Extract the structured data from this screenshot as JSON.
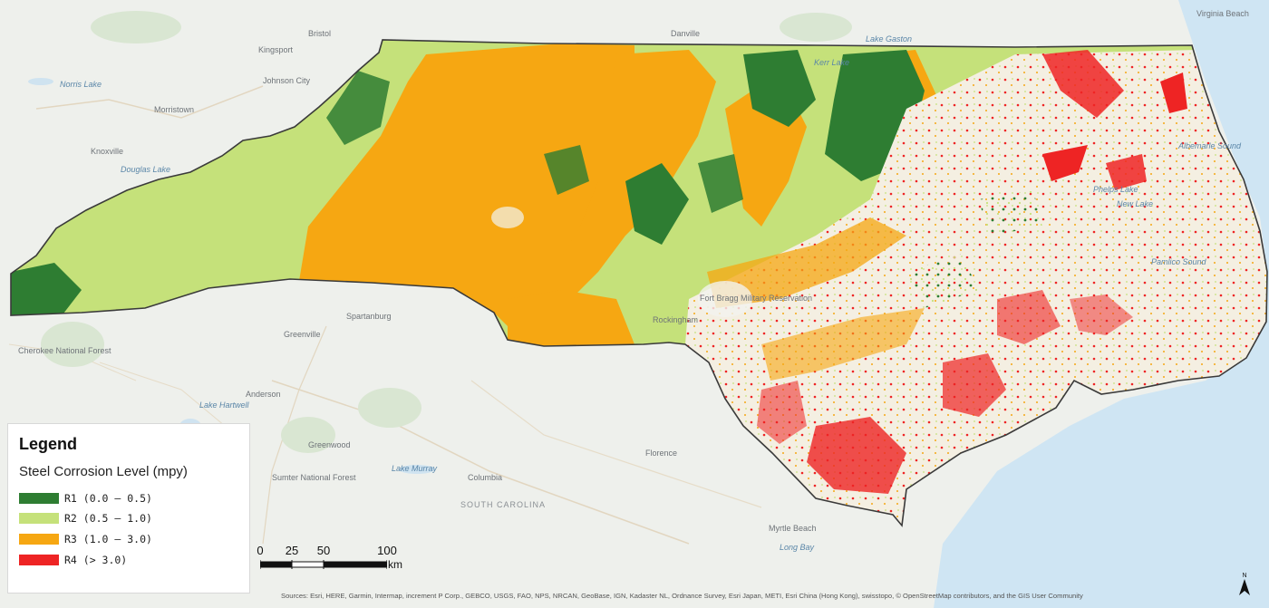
{
  "legend": {
    "title": "Legend",
    "subtitle": "Steel Corrosion Level (mpy)",
    "classes": [
      {
        "label": "R1 (0.0 – 0.5)",
        "color": "#2e7d32"
      },
      {
        "label": "R2 (0.5 – 1.0)",
        "color": "#c5e17a"
      },
      {
        "label": "R3 (1.0 – 3.0)",
        "color": "#f6a712"
      },
      {
        "label": "R4 (> 3.0)",
        "color": "#ee2424"
      }
    ]
  },
  "scale_bar": {
    "ticks": [
      "0",
      "25",
      "50",
      "100"
    ],
    "unit": "km"
  },
  "place_labels": [
    "Bristol",
    "Kingsport",
    "Johnson City",
    "Norris Lake",
    "Morristown",
    "Knoxville",
    "Douglas Lake",
    "Danville",
    "Spartanburg",
    "Greenville",
    "Anderson",
    "Greenwood",
    "Lake Murray",
    "Columbia",
    "SOUTH CAROLINA",
    "Florence",
    "Myrtle Beach",
    "Long Bay",
    "Rockingham",
    "Fort Bragg Military Reservation",
    "Pamlico Sound",
    "Albemarle Sound",
    "Phelps Lake",
    "New Lake",
    "Lake Hartwell",
    "Virginia Beach",
    "Kerr Lake",
    "Lake Gaston",
    "Cherokee National Forest",
    "Sumter National Forest"
  ],
  "attribution": "Sources: Esri, HERE, Garmin, Intermap, increment P Corp., GEBCO, USGS, FAO, NPS, NRCAN, GeoBase, IGN, Kadaster NL, Ordnance Survey, Esri Japan, METI, Esri China (Hong Kong), swisstopo, © OpenStreetMap contributors, and the GIS User Community",
  "north_arrow_label": "N",
  "colors": {
    "ocean": "#cfe5f3",
    "land": "#eef0ec",
    "state_outline": "#3a3a3a"
  }
}
